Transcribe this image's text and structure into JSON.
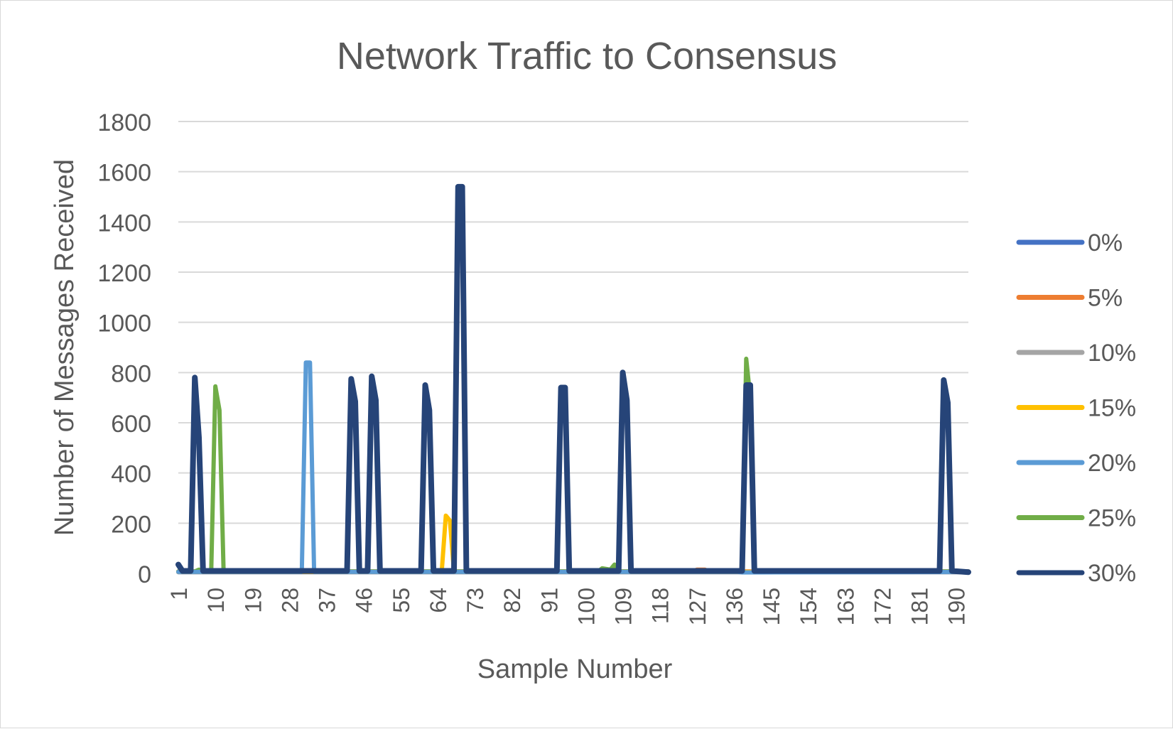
{
  "chart_data": {
    "type": "line",
    "title": "Network Traffic to Consensus",
    "xlabel": "Sample Number",
    "ylabel": "Number of Messages Received",
    "ylim": [
      0,
      1800
    ],
    "yticks": [
      0,
      200,
      400,
      600,
      800,
      1000,
      1200,
      1400,
      1600,
      1800
    ],
    "xlim": [
      1,
      193
    ],
    "xticks": [
      1,
      10,
      19,
      28,
      37,
      46,
      55,
      64,
      73,
      82,
      91,
      100,
      109,
      118,
      127,
      136,
      145,
      154,
      163,
      172,
      181,
      190
    ],
    "grid": "horizontal",
    "legend_position": "right",
    "series": [
      {
        "name": "0%",
        "color": "#4472C4",
        "points": [
          [
            1,
            5
          ],
          [
            193,
            5
          ]
        ]
      },
      {
        "name": "5%",
        "color": "#ED7D31",
        "points": [
          [
            1,
            8
          ],
          [
            126,
            8
          ],
          [
            127,
            15
          ],
          [
            129,
            15
          ],
          [
            130,
            8
          ],
          [
            160,
            8
          ],
          [
            161,
            12
          ],
          [
            162,
            8
          ],
          [
            193,
            8
          ]
        ]
      },
      {
        "name": "10%",
        "color": "#A5A5A5",
        "points": [
          [
            1,
            5
          ],
          [
            193,
            5
          ]
        ]
      },
      {
        "name": "15%",
        "color": "#FFC000",
        "points": [
          [
            1,
            6
          ],
          [
            65,
            6
          ],
          [
            66,
            230
          ],
          [
            67,
            210
          ],
          [
            68,
            6
          ],
          [
            193,
            6
          ]
        ]
      },
      {
        "name": "20%",
        "color": "#5B9BD5",
        "points": [
          [
            1,
            6
          ],
          [
            30,
            6
          ],
          [
            31,
            6
          ],
          [
            32,
            840
          ],
          [
            33,
            840
          ],
          [
            34,
            6
          ],
          [
            137,
            6
          ],
          [
            138,
            4
          ],
          [
            193,
            6
          ]
        ]
      },
      {
        "name": "25%",
        "color": "#70AD47",
        "points": [
          [
            1,
            8
          ],
          [
            5,
            8
          ],
          [
            6,
            15
          ],
          [
            7,
            8
          ],
          [
            9,
            8
          ],
          [
            10,
            745
          ],
          [
            11,
            650
          ],
          [
            12,
            8
          ],
          [
            103,
            8
          ],
          [
            104,
            20
          ],
          [
            106,
            15
          ],
          [
            107,
            35
          ],
          [
            108,
            8
          ],
          [
            138,
            8
          ],
          [
            139,
            855
          ],
          [
            140,
            700
          ],
          [
            141,
            8
          ],
          [
            193,
            8
          ]
        ]
      },
      {
        "name": "30%",
        "color": "#264478",
        "points": [
          [
            1,
            35
          ],
          [
            2,
            10
          ],
          [
            3,
            10
          ],
          [
            4,
            10
          ],
          [
            5,
            780
          ],
          [
            6,
            540
          ],
          [
            7,
            10
          ],
          [
            42,
            10
          ],
          [
            43,
            775
          ],
          [
            44,
            685
          ],
          [
            45,
            10
          ],
          [
            47,
            10
          ],
          [
            48,
            785
          ],
          [
            49,
            690
          ],
          [
            50,
            10
          ],
          [
            60,
            10
          ],
          [
            61,
            750
          ],
          [
            62,
            650
          ],
          [
            63,
            10
          ],
          [
            68,
            10
          ],
          [
            69,
            1540
          ],
          [
            70,
            1540
          ],
          [
            71,
            10
          ],
          [
            93,
            10
          ],
          [
            94,
            740
          ],
          [
            95,
            740
          ],
          [
            96,
            10
          ],
          [
            108,
            10
          ],
          [
            109,
            800
          ],
          [
            110,
            690
          ],
          [
            111,
            10
          ],
          [
            138,
            10
          ],
          [
            139,
            750
          ],
          [
            140,
            750
          ],
          [
            141,
            10
          ],
          [
            186,
            10
          ],
          [
            187,
            770
          ],
          [
            188,
            680
          ],
          [
            189,
            10
          ],
          [
            193,
            5
          ]
        ]
      }
    ]
  }
}
